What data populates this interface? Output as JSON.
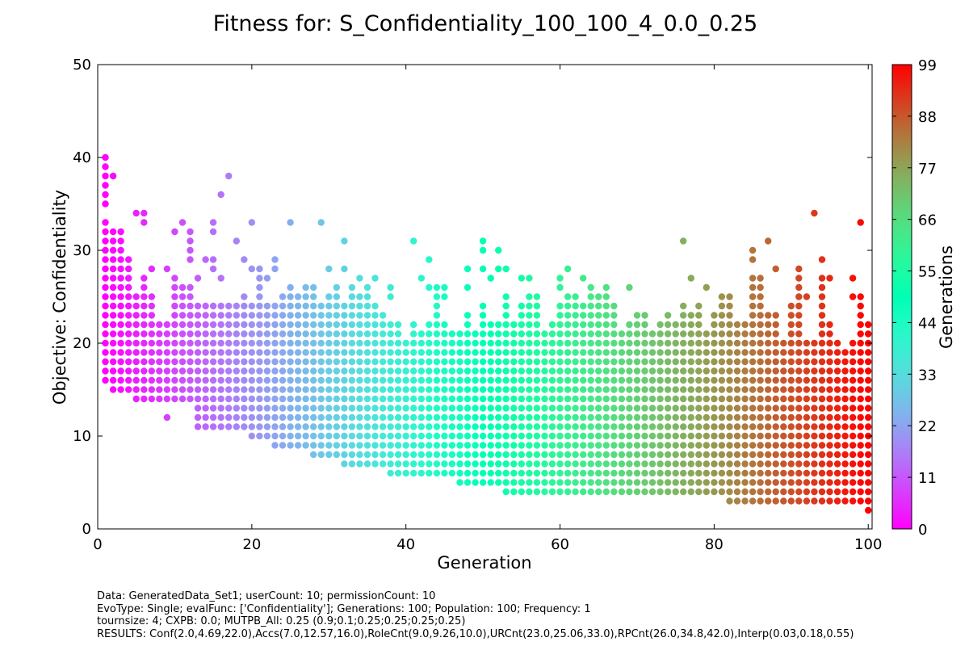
{
  "chart_data": {
    "type": "scatter",
    "title": "Fitness for: S_Confidentiality_100_100_4_0.0_0.25",
    "xlabel": "Generation",
    "ylabel": "Objective: Confidentiality",
    "xlim": [
      0,
      100.5
    ],
    "ylim": [
      0,
      50
    ],
    "xticks": [
      "0",
      "20",
      "40",
      "60",
      "80",
      "100"
    ],
    "yticks": [
      "0",
      "10",
      "20",
      "30",
      "40",
      "50"
    ],
    "grid": false,
    "colormap": "rainbow",
    "colorbar": {
      "label": "Generations",
      "range": [
        0,
        99
      ],
      "ticks": [
        "0",
        "11",
        "22",
        "33",
        "44",
        "55",
        "66",
        "77",
        "88",
        "99"
      ]
    },
    "series": [
      {
        "encoding": "generation: [min, max, [isolated outlier values]]",
        "points": [
          [
            1,
            [
              16,
              33,
              [
                35,
                36,
                37,
                38,
                39,
                40
              ]
            ]
          ],
          [
            2,
            [
              15,
              32,
              [
                38
              ]
            ]
          ],
          [
            3,
            [
              15,
              32
            ]
          ],
          [
            4,
            [
              15,
              29
            ]
          ],
          [
            5,
            [
              14,
              25,
              [
                34
              ]
            ]
          ],
          [
            6,
            [
              14,
              27,
              [
                33,
                34
              ]
            ]
          ],
          [
            7,
            [
              14,
              25,
              [
                28
              ]
            ]
          ],
          [
            8,
            [
              14,
              22
            ]
          ],
          [
            9,
            [
              14,
              22,
              [
                12,
                28
              ]
            ]
          ],
          [
            10,
            [
              14,
              27,
              [
                32
              ]
            ]
          ],
          [
            11,
            [
              14,
              26,
              [
                33
              ]
            ]
          ],
          [
            12,
            [
              14,
              26,
              [
                29,
                30,
                31,
                32
              ]
            ]
          ],
          [
            13,
            [
              11,
              24,
              [
                27
              ]
            ]
          ],
          [
            14,
            [
              11,
              24,
              [
                29
              ]
            ]
          ],
          [
            15,
            [
              11,
              24,
              [
                28,
                29,
                32,
                33
              ]
            ]
          ],
          [
            16,
            [
              11,
              24,
              [
                27,
                36
              ]
            ]
          ],
          [
            17,
            [
              11,
              24,
              [
                38
              ]
            ]
          ],
          [
            18,
            [
              11,
              24,
              [
                31
              ]
            ]
          ],
          [
            19,
            [
              11,
              25,
              [
                29
              ]
            ]
          ],
          [
            20,
            [
              10,
              24,
              [
                28,
                33
              ]
            ]
          ],
          [
            21,
            [
              10,
              26,
              [
                27,
                28
              ]
            ]
          ],
          [
            22,
            [
              10,
              24,
              [
                27
              ]
            ]
          ],
          [
            23,
            [
              9,
              24,
              [
                28,
                29
              ]
            ]
          ],
          [
            24,
            [
              9,
              25
            ]
          ],
          [
            25,
            [
              9,
              25,
              [
                26,
                33
              ]
            ]
          ],
          [
            26,
            [
              9,
              25
            ]
          ],
          [
            27,
            [
              9,
              26
            ]
          ],
          [
            28,
            [
              8,
              26
            ]
          ],
          [
            29,
            [
              8,
              24,
              [
                33
              ]
            ]
          ],
          [
            30,
            [
              8,
              25,
              [
                28
              ]
            ]
          ],
          [
            31,
            [
              8,
              24,
              [
                25,
                26
              ]
            ]
          ],
          [
            32,
            [
              7,
              24,
              [
                28,
                31
              ]
            ]
          ],
          [
            33,
            [
              7,
              26
            ]
          ],
          [
            34,
            [
              7,
              25,
              [
                27
              ]
            ]
          ],
          [
            35,
            [
              7,
              25,
              [
                26
              ]
            ]
          ],
          [
            36,
            [
              7,
              24,
              [
                27
              ]
            ]
          ],
          [
            37,
            [
              7,
              23
            ]
          ],
          [
            38,
            [
              6,
              22,
              [
                25,
                26
              ]
            ]
          ],
          [
            39,
            [
              6,
              22
            ]
          ],
          [
            40,
            [
              6,
              20
            ]
          ],
          [
            41,
            [
              6,
              22,
              [
                31
              ]
            ]
          ],
          [
            42,
            [
              6,
              21,
              [
                27
              ]
            ]
          ],
          [
            43,
            [
              6,
              22,
              [
                26,
                29
              ]
            ]
          ],
          [
            44,
            [
              6,
              24,
              [
                25,
                26
              ]
            ]
          ],
          [
            45,
            [
              6,
              22,
              [
                25,
                26
              ]
            ]
          ],
          [
            46,
            [
              6,
              21
            ]
          ],
          [
            47,
            [
              5,
              21
            ]
          ],
          [
            48,
            [
              5,
              23,
              [
                26,
                28
              ]
            ]
          ],
          [
            49,
            [
              5,
              21
            ]
          ],
          [
            50,
            [
              5,
              24,
              [
                28,
                30,
                31
              ]
            ]
          ],
          [
            51,
            [
              5,
              22,
              [
                27
              ]
            ]
          ],
          [
            52,
            [
              5,
              22,
              [
                28,
                30
              ]
            ]
          ],
          [
            53,
            [
              4,
              25,
              [
                28
              ]
            ]
          ],
          [
            54,
            [
              4,
              22
            ]
          ],
          [
            55,
            [
              4,
              24,
              [
                27
              ]
            ]
          ],
          [
            56,
            [
              4,
              25,
              [
                27
              ]
            ]
          ],
          [
            57,
            [
              4,
              25
            ]
          ],
          [
            58,
            [
              4,
              21
            ]
          ],
          [
            59,
            [
              4,
              22
            ]
          ],
          [
            60,
            [
              4,
              24,
              [
                26,
                27
              ]
            ]
          ],
          [
            61,
            [
              4,
              25,
              [
                28
              ]
            ]
          ],
          [
            62,
            [
              4,
              25
            ]
          ],
          [
            63,
            [
              4,
              24,
              [
                27
              ]
            ]
          ],
          [
            64,
            [
              4,
              26
            ]
          ],
          [
            65,
            [
              4,
              25
            ]
          ],
          [
            66,
            [
              4,
              26
            ]
          ],
          [
            67,
            [
              4,
              24
            ]
          ],
          [
            68,
            [
              4,
              21
            ]
          ],
          [
            69,
            [
              4,
              22,
              [
                26
              ]
            ]
          ],
          [
            70,
            [
              4,
              23
            ]
          ],
          [
            71,
            [
              4,
              23
            ]
          ],
          [
            72,
            [
              4,
              21
            ]
          ],
          [
            73,
            [
              4,
              22
            ]
          ],
          [
            74,
            [
              4,
              23
            ]
          ],
          [
            75,
            [
              4,
              22
            ]
          ],
          [
            76,
            [
              4,
              24,
              [
                31
              ]
            ]
          ],
          [
            77,
            [
              4,
              23,
              [
                27
              ]
            ]
          ],
          [
            78,
            [
              4,
              24
            ]
          ],
          [
            79,
            [
              4,
              21,
              [
                26
              ]
            ]
          ],
          [
            80,
            [
              4,
              23
            ]
          ],
          [
            81,
            [
              4,
              25
            ]
          ],
          [
            82,
            [
              3,
              25
            ]
          ],
          [
            83,
            [
              3,
              22
            ]
          ],
          [
            84,
            [
              3,
              22
            ]
          ],
          [
            85,
            [
              3,
              27,
              [
                29,
                30
              ]
            ]
          ],
          [
            86,
            [
              3,
              27
            ]
          ],
          [
            87,
            [
              3,
              23,
              [
                31
              ]
            ]
          ],
          [
            88,
            [
              3,
              23,
              [
                28
              ]
            ]
          ],
          [
            89,
            [
              3,
              20
            ]
          ],
          [
            90,
            [
              3,
              24
            ]
          ],
          [
            91,
            [
              3,
              27,
              [
                28
              ]
            ]
          ],
          [
            92,
            [
              3,
              20,
              [
                25
              ]
            ]
          ],
          [
            93,
            [
              3,
              20,
              [
                34
              ]
            ]
          ],
          [
            94,
            [
              3,
              27,
              [
                29
              ]
            ]
          ],
          [
            95,
            [
              3,
              22,
              [
                27
              ]
            ]
          ],
          [
            96,
            [
              3,
              20
            ]
          ],
          [
            97,
            [
              3,
              19
            ]
          ],
          [
            98,
            [
              3,
              20,
              [
                25,
                27
              ]
            ]
          ],
          [
            99,
            [
              3,
              25,
              [
                33
              ]
            ]
          ],
          [
            100,
            [
              2,
              22
            ]
          ]
        ]
      }
    ]
  },
  "footer": {
    "line1": "Data: GeneratedData_Set1; userCount: 10; permissionCount: 10",
    "line2": "EvoType: Single; evalFunc: ['Confidentiality']; Generations: 100; Population: 100; Frequency: 1",
    "line3": "tournsize: 4; CXPB: 0.0; MUTPB_All: 0.25 (0.9;0.1;0.25;0.25;0.25;0.25)",
    "line4": "RESULTS: Conf(2.0,4.69,22.0),Accs(7.0,12.57,16.0),RoleCnt(9.0,9.26,10.0),URCnt(23.0,25.06,33.0),RPCnt(26.0,34.8,42.0),Interp(0.03,0.18,0.55)"
  }
}
